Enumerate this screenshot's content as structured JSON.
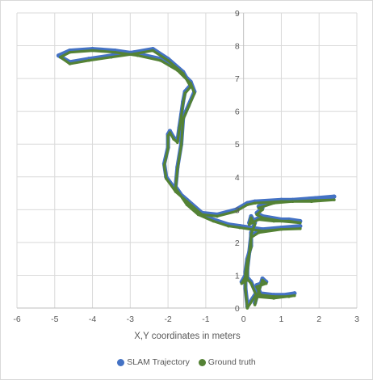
{
  "chart_data": {
    "type": "scatter",
    "title": "",
    "xlabel": "X,Y coordinates in meters",
    "ylabel": "",
    "xlim": [
      -6,
      3
    ],
    "ylim": [
      0,
      9
    ],
    "x_ticks": [
      -6,
      -5,
      -4,
      -3,
      -2,
      -1,
      0,
      1,
      2,
      3
    ],
    "y_ticks": [
      0,
      1,
      2,
      3,
      4,
      5,
      6,
      7,
      8,
      9
    ],
    "grid": true,
    "legend_position": "bottom",
    "series": [
      {
        "name": "SLAM Trajectory",
        "color": "#4472c4",
        "points": [
          [
            0.1,
            0.1
          ],
          [
            0.05,
            0.6
          ],
          [
            0.05,
            1.1
          ],
          [
            0.1,
            1.5
          ],
          [
            0.2,
            1.9
          ],
          [
            0.2,
            2.3
          ],
          [
            0.3,
            2.6
          ],
          [
            0.2,
            2.8
          ],
          [
            0.15,
            2.6
          ],
          [
            0.4,
            2.75
          ],
          [
            0.8,
            2.7
          ],
          [
            1.2,
            2.7
          ],
          [
            1.5,
            2.65
          ],
          [
            1.0,
            2.7
          ],
          [
            0.5,
            2.8
          ],
          [
            0.35,
            2.9
          ],
          [
            0.5,
            3.05
          ],
          [
            0.4,
            3.1
          ],
          [
            0.8,
            3.25
          ],
          [
            1.3,
            3.3
          ],
          [
            1.9,
            3.35
          ],
          [
            2.4,
            3.4
          ],
          [
            1.8,
            3.3
          ],
          [
            1.0,
            3.3
          ],
          [
            0.3,
            3.25
          ],
          [
            0.1,
            3.2
          ],
          [
            -0.2,
            3.0
          ],
          [
            -0.7,
            2.85
          ],
          [
            -1.1,
            2.9
          ],
          [
            -1.5,
            3.3
          ],
          [
            -1.8,
            3.6
          ],
          [
            -2.05,
            4.0
          ],
          [
            -2.1,
            4.4
          ],
          [
            -2.0,
            4.9
          ],
          [
            -2.0,
            5.3
          ],
          [
            -1.95,
            5.4
          ],
          [
            -1.85,
            5.2
          ],
          [
            -1.75,
            5.1
          ],
          [
            -1.7,
            5.5
          ],
          [
            -1.65,
            5.9
          ],
          [
            -1.6,
            6.3
          ],
          [
            -1.55,
            6.6
          ],
          [
            -1.4,
            6.8
          ],
          [
            -1.6,
            7.2
          ],
          [
            -2.0,
            7.6
          ],
          [
            -2.4,
            7.9
          ],
          [
            -2.9,
            7.8
          ],
          [
            -3.5,
            7.7
          ],
          [
            -4.1,
            7.6
          ],
          [
            -4.6,
            7.5
          ],
          [
            -4.9,
            7.7
          ],
          [
            -4.6,
            7.85
          ],
          [
            -4.0,
            7.9
          ],
          [
            -3.4,
            7.85
          ],
          [
            -2.8,
            7.75
          ],
          [
            -2.2,
            7.6
          ],
          [
            -1.75,
            7.3
          ],
          [
            -1.4,
            6.9
          ],
          [
            -1.3,
            6.6
          ],
          [
            -1.45,
            6.2
          ],
          [
            -1.6,
            5.8
          ],
          [
            -1.65,
            5.0
          ],
          [
            -1.75,
            4.3
          ],
          [
            -1.8,
            3.7
          ],
          [
            -1.5,
            3.2
          ],
          [
            -1.2,
            2.9
          ],
          [
            -0.8,
            2.7
          ],
          [
            -0.4,
            2.55
          ],
          [
            -0.1,
            2.5
          ],
          [
            0.2,
            2.45
          ],
          [
            0.5,
            2.4
          ],
          [
            1.0,
            2.45
          ],
          [
            1.5,
            2.5
          ],
          [
            1.0,
            2.45
          ],
          [
            0.4,
            2.35
          ],
          [
            0.2,
            2.2
          ],
          [
            0.15,
            1.7
          ],
          [
            0.1,
            1.2
          ],
          [
            0.1,
            0.9
          ],
          [
            -0.05,
            0.8
          ],
          [
            0.05,
            1.0
          ],
          [
            0.2,
            0.8
          ],
          [
            0.35,
            0.4
          ],
          [
            0.3,
            0.15
          ],
          [
            0.4,
            0.55
          ],
          [
            0.5,
            0.9
          ],
          [
            0.6,
            0.8
          ],
          [
            0.35,
            0.7
          ],
          [
            0.45,
            0.45
          ],
          [
            0.8,
            0.4
          ],
          [
            1.2,
            0.4
          ],
          [
            1.35,
            0.45
          ],
          [
            0.8,
            0.35
          ],
          [
            0.3,
            0.4
          ],
          [
            0.1,
            0.05
          ]
        ]
      },
      {
        "name": "Ground truth",
        "color": "#548235",
        "points": [
          [
            0.1,
            0.0
          ],
          [
            0.05,
            0.55
          ],
          [
            0.05,
            1.05
          ],
          [
            0.1,
            1.45
          ],
          [
            0.2,
            1.85
          ],
          [
            0.2,
            2.25
          ],
          [
            0.3,
            2.55
          ],
          [
            0.2,
            2.75
          ],
          [
            0.15,
            2.55
          ],
          [
            0.4,
            2.7
          ],
          [
            0.8,
            2.65
          ],
          [
            1.2,
            2.65
          ],
          [
            1.5,
            2.6
          ],
          [
            1.0,
            2.65
          ],
          [
            0.5,
            2.75
          ],
          [
            0.35,
            2.85
          ],
          [
            0.5,
            3.0
          ],
          [
            0.4,
            3.05
          ],
          [
            0.8,
            3.2
          ],
          [
            1.3,
            3.25
          ],
          [
            1.9,
            3.28
          ],
          [
            2.4,
            3.3
          ],
          [
            1.8,
            3.25
          ],
          [
            1.0,
            3.25
          ],
          [
            0.3,
            3.2
          ],
          [
            0.1,
            3.15
          ],
          [
            -0.2,
            2.95
          ],
          [
            -0.7,
            2.8
          ],
          [
            -1.1,
            2.85
          ],
          [
            -1.5,
            3.25
          ],
          [
            -1.8,
            3.55
          ],
          [
            -2.05,
            3.95
          ],
          [
            -2.1,
            4.35
          ],
          [
            -2.0,
            4.85
          ],
          [
            -2.0,
            5.25
          ],
          [
            -1.95,
            5.35
          ],
          [
            -1.85,
            5.15
          ],
          [
            -1.75,
            5.05
          ],
          [
            -1.7,
            5.45
          ],
          [
            -1.65,
            5.85
          ],
          [
            -1.6,
            6.25
          ],
          [
            -1.55,
            6.55
          ],
          [
            -1.4,
            6.75
          ],
          [
            -1.6,
            7.15
          ],
          [
            -2.0,
            7.55
          ],
          [
            -2.4,
            7.85
          ],
          [
            -2.9,
            7.75
          ],
          [
            -3.5,
            7.65
          ],
          [
            -4.1,
            7.55
          ],
          [
            -4.6,
            7.45
          ],
          [
            -4.85,
            7.65
          ],
          [
            -4.6,
            7.8
          ],
          [
            -4.0,
            7.85
          ],
          [
            -3.4,
            7.8
          ],
          [
            -2.8,
            7.7
          ],
          [
            -2.2,
            7.55
          ],
          [
            -1.75,
            7.25
          ],
          [
            -1.4,
            6.85
          ],
          [
            -1.3,
            6.55
          ],
          [
            -1.45,
            6.15
          ],
          [
            -1.6,
            5.75
          ],
          [
            -1.65,
            4.95
          ],
          [
            -1.75,
            4.25
          ],
          [
            -1.8,
            3.65
          ],
          [
            -1.5,
            3.15
          ],
          [
            -1.2,
            2.85
          ],
          [
            -0.8,
            2.65
          ],
          [
            -0.4,
            2.5
          ],
          [
            -0.1,
            2.45
          ],
          [
            0.2,
            2.4
          ],
          [
            0.5,
            2.35
          ],
          [
            1.0,
            2.4
          ],
          [
            1.5,
            2.42
          ],
          [
            1.0,
            2.4
          ],
          [
            0.4,
            2.3
          ],
          [
            0.2,
            2.15
          ],
          [
            0.15,
            1.65
          ],
          [
            0.1,
            1.15
          ],
          [
            0.1,
            0.85
          ],
          [
            -0.05,
            0.75
          ],
          [
            0.05,
            0.95
          ],
          [
            0.2,
            0.75
          ],
          [
            0.35,
            0.35
          ],
          [
            0.3,
            0.1
          ],
          [
            0.4,
            0.5
          ],
          [
            0.5,
            0.85
          ],
          [
            0.6,
            0.75
          ],
          [
            0.35,
            0.65
          ],
          [
            0.45,
            0.4
          ],
          [
            0.8,
            0.35
          ],
          [
            1.2,
            0.35
          ],
          [
            1.35,
            0.38
          ],
          [
            0.8,
            0.3
          ],
          [
            0.3,
            0.35
          ],
          [
            0.1,
            0.0
          ]
        ]
      }
    ]
  }
}
